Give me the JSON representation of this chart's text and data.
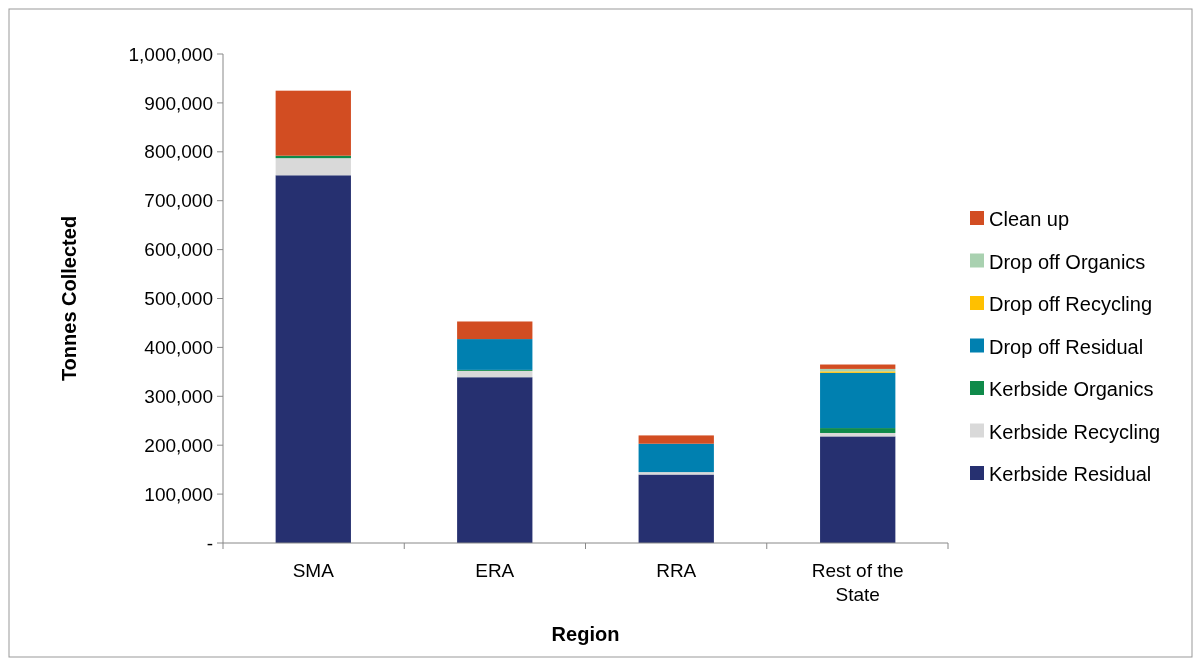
{
  "chart_data": {
    "type": "bar",
    "stacked": true,
    "xlabel": "Region",
    "ylabel": "Tonnes Collected",
    "categories": [
      "SMA",
      "ERA",
      "RRA",
      "Rest of the State"
    ],
    "ylim": [
      0,
      1000000
    ],
    "yticks": [
      {
        "value": 0,
        "label": "-"
      },
      {
        "value": 100000,
        "label": "100,000"
      },
      {
        "value": 200000,
        "label": "200,000"
      },
      {
        "value": 300000,
        "label": "300,000"
      },
      {
        "value": 400000,
        "label": "400,000"
      },
      {
        "value": 500000,
        "label": "500,000"
      },
      {
        "value": 600000,
        "label": "600,000"
      },
      {
        "value": 700000,
        "label": "700,000"
      },
      {
        "value": 800000,
        "label": "800,000"
      },
      {
        "value": 900000,
        "label": "900,000"
      },
      {
        "value": 1000000,
        "label": "1,000,000"
      }
    ],
    "grid": false,
    "legend": "right",
    "series": [
      {
        "name": "Kerbside Residual",
        "color": "#263070",
        "values": [
          752000,
          339000,
          140000,
          218000
        ]
      },
      {
        "name": "Kerbside Recycling",
        "color": "#d9d9d9",
        "values": [
          35000,
          13000,
          5000,
          7000
        ]
      },
      {
        "name": "Kerbside Organics",
        "color": "#0f8a4a",
        "values": [
          5000,
          2000,
          0,
          10000
        ]
      },
      {
        "name": "Drop off Residual",
        "color": "#0080b0",
        "values": [
          0,
          63000,
          58000,
          113000
        ]
      },
      {
        "name": "Drop off Recycling",
        "color": "#ffc000",
        "values": [
          0,
          0,
          0,
          3000
        ]
      },
      {
        "name": "Drop off Organics",
        "color": "#a9d1b0",
        "values": [
          0,
          0,
          0,
          5000
        ]
      },
      {
        "name": "Clean up",
        "color": "#d24d22",
        "values": [
          133000,
          36000,
          17000,
          9000
        ]
      }
    ]
  }
}
